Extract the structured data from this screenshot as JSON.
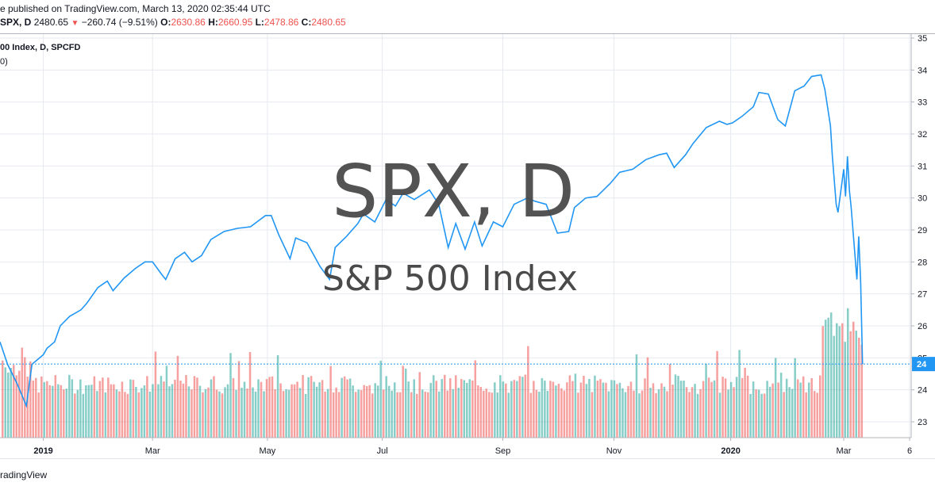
{
  "header": {
    "published": "e published on TradingView.com, March 13, 2020 02:35:44 UTC",
    "symbol": "SPX, D",
    "last": "2480.65",
    "change": "−260.74 (−9.51%)",
    "open_label": "O:",
    "open": "2630.86",
    "high_label": "H:",
    "high": "2660.95",
    "low_label": "L:",
    "low": "2478.86",
    "close_label": "C:",
    "close": "2480.65"
  },
  "legend": {
    "line1": "00 Index, D, SPCFD",
    "line2": "0)"
  },
  "watermark": {
    "title": "SPX, D",
    "subtitle": "S&P 500 Index"
  },
  "footer": "radingView",
  "price_tag": "24",
  "colors": {
    "line": "#2196f3",
    "up": "#26a69a",
    "down": "#ef5350",
    "grid": "#e6e9ef",
    "tag": "#2196f3"
  },
  "chart_data": {
    "type": "line",
    "title": "",
    "xlabel": "",
    "ylabel": "",
    "ylim": [
      2280,
      3520
    ],
    "y_tick_labels": [
      "35",
      "34",
      "33",
      "32",
      "31",
      "30",
      "29",
      "28",
      "27",
      "26",
      "25",
      "24",
      "23"
    ],
    "y_ticks": [
      3500,
      3400,
      3300,
      3200,
      3100,
      3000,
      2900,
      2800,
      2700,
      2600,
      2500,
      2400,
      2300
    ],
    "x_tick_labels": [
      "2019",
      "Mar",
      "May",
      "Jul",
      "Sep",
      "Nov",
      "2020",
      "Mar",
      "6"
    ],
    "x_tick_dates": [
      "2019-01-02",
      "2019-03-01",
      "2019-05-01",
      "2019-07-01",
      "2019-09-03",
      "2019-11-01",
      "2020-01-02",
      "2020-03-02",
      "2020-04-06"
    ],
    "last_price": 2480.65,
    "series": [
      {
        "points": [
          [
            "2018-12-10",
            2550
          ],
          [
            "2018-12-14",
            2480
          ],
          [
            "2018-12-19",
            2420
          ],
          [
            "2018-12-24",
            2350
          ],
          [
            "2018-12-27",
            2480
          ],
          [
            "2019-01-02",
            2510
          ],
          [
            "2019-01-04",
            2530
          ],
          [
            "2019-01-08",
            2550
          ],
          [
            "2019-01-11",
            2600
          ],
          [
            "2019-01-16",
            2630
          ],
          [
            "2019-01-22",
            2650
          ],
          [
            "2019-01-25",
            2670
          ],
          [
            "2019-01-31",
            2720
          ],
          [
            "2019-02-05",
            2740
          ],
          [
            "2019-02-08",
            2710
          ],
          [
            "2019-02-14",
            2750
          ],
          [
            "2019-02-20",
            2780
          ],
          [
            "2019-02-25",
            2800
          ],
          [
            "2019-03-01",
            2800
          ],
          [
            "2019-03-06",
            2760
          ],
          [
            "2019-03-08",
            2745
          ],
          [
            "2019-03-13",
            2810
          ],
          [
            "2019-03-18",
            2830
          ],
          [
            "2019-03-22",
            2800
          ],
          [
            "2019-03-27",
            2820
          ],
          [
            "2019-04-01",
            2870
          ],
          [
            "2019-04-08",
            2895
          ],
          [
            "2019-04-15",
            2905
          ],
          [
            "2019-04-22",
            2910
          ],
          [
            "2019-04-30",
            2945
          ],
          [
            "2019-05-03",
            2945
          ],
          [
            "2019-05-07",
            2885
          ],
          [
            "2019-05-13",
            2810
          ],
          [
            "2019-05-16",
            2875
          ],
          [
            "2019-05-22",
            2860
          ],
          [
            "2019-05-29",
            2785
          ],
          [
            "2019-06-03",
            2745
          ],
          [
            "2019-06-06",
            2845
          ],
          [
            "2019-06-12",
            2880
          ],
          [
            "2019-06-18",
            2920
          ],
          [
            "2019-06-21",
            2950
          ],
          [
            "2019-06-27",
            2925
          ],
          [
            "2019-07-03",
            2995
          ],
          [
            "2019-07-08",
            2975
          ],
          [
            "2019-07-12",
            3015
          ],
          [
            "2019-07-18",
            2995
          ],
          [
            "2019-07-26",
            3025
          ],
          [
            "2019-07-31",
            2980
          ],
          [
            "2019-08-05",
            2845
          ],
          [
            "2019-08-09",
            2920
          ],
          [
            "2019-08-14",
            2840
          ],
          [
            "2019-08-19",
            2925
          ],
          [
            "2019-08-23",
            2850
          ],
          [
            "2019-08-29",
            2925
          ],
          [
            "2019-09-03",
            2910
          ],
          [
            "2019-09-09",
            2980
          ],
          [
            "2019-09-16",
            3000
          ],
          [
            "2019-09-20",
            2990
          ],
          [
            "2019-09-26",
            2980
          ],
          [
            "2019-10-02",
            2890
          ],
          [
            "2019-10-08",
            2895
          ],
          [
            "2019-10-11",
            2970
          ],
          [
            "2019-10-17",
            3000
          ],
          [
            "2019-10-23",
            3005
          ],
          [
            "2019-10-30",
            3045
          ],
          [
            "2019-11-04",
            3080
          ],
          [
            "2019-11-11",
            3090
          ],
          [
            "2019-11-18",
            3120
          ],
          [
            "2019-11-25",
            3135
          ],
          [
            "2019-11-29",
            3140
          ],
          [
            "2019-12-03",
            3095
          ],
          [
            "2019-12-09",
            3135
          ],
          [
            "2019-12-13",
            3170
          ],
          [
            "2019-12-20",
            3220
          ],
          [
            "2019-12-27",
            3240
          ],
          [
            "2019-12-31",
            3230
          ],
          [
            "2020-01-03",
            3235
          ],
          [
            "2020-01-08",
            3255
          ],
          [
            "2020-01-14",
            3285
          ],
          [
            "2020-01-17",
            3330
          ],
          [
            "2020-01-22",
            3325
          ],
          [
            "2020-01-27",
            3245
          ],
          [
            "2020-01-31",
            3225
          ],
          [
            "2020-02-05",
            3335
          ],
          [
            "2020-02-10",
            3350
          ],
          [
            "2020-02-14",
            3380
          ],
          [
            "2020-02-19",
            3385
          ],
          [
            "2020-02-21",
            3340
          ],
          [
            "2020-02-24",
            3225
          ],
          [
            "2020-02-25",
            3130
          ],
          [
            "2020-02-27",
            2980
          ],
          [
            "2020-02-28",
            2955
          ],
          [
            "2020-03-02",
            3090
          ],
          [
            "2020-03-03",
            3005
          ],
          [
            "2020-03-04",
            3130
          ],
          [
            "2020-03-05",
            3025
          ],
          [
            "2020-03-06",
            2970
          ],
          [
            "2020-03-09",
            2745
          ],
          [
            "2020-03-10",
            2880
          ],
          [
            "2020-03-11",
            2740
          ],
          [
            "2020-03-12",
            2480.65
          ]
        ]
      }
    ],
    "volume_bars": 310
  }
}
